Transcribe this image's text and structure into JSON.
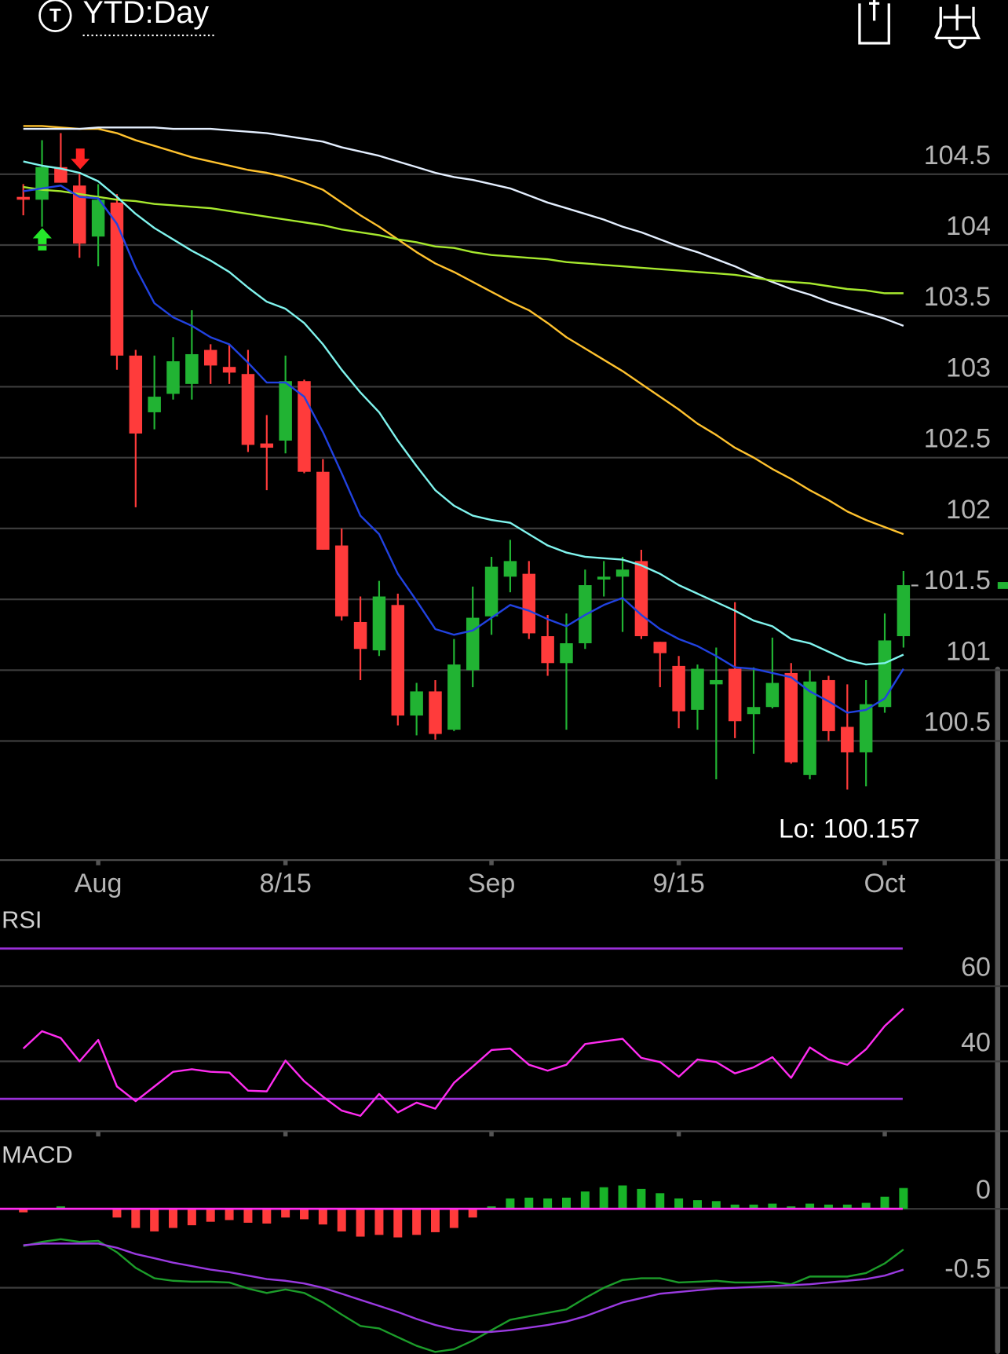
{
  "header": {
    "icon": "T",
    "title": "YTD:Day"
  },
  "chart_data": [
    {
      "type": "candlestick",
      "categories": [
        null,
        null,
        null,
        null,
        "Aug",
        null,
        null,
        null,
        null,
        null,
        null,
        null,
        null,
        null,
        "8/15",
        null,
        null,
        null,
        null,
        null,
        null,
        null,
        null,
        null,
        null,
        "Sep",
        null,
        null,
        null,
        null,
        null,
        null,
        null,
        null,
        null,
        "9/15",
        null,
        null,
        null,
        null,
        null,
        null,
        null,
        null,
        null,
        null,
        "Oct",
        null
      ],
      "open": [
        104.34,
        104.32,
        104.55,
        104.42,
        104.06,
        104.3,
        103.22,
        102.82,
        102.95,
        103.02,
        103.26,
        103.14,
        103.09,
        102.6,
        102.62,
        103.04,
        102.4,
        101.88,
        101.34,
        101.14,
        101.46,
        100.68,
        100.85,
        100.58,
        101.0,
        101.38,
        101.66,
        101.68,
        101.24,
        101.05,
        101.19,
        101.64,
        101.66,
        101.77,
        101.2,
        101.03,
        100.72,
        100.9,
        101.01,
        100.69,
        100.74,
        100.98,
        100.26,
        100.93,
        100.6,
        100.42,
        100.74,
        101.24
      ],
      "high": [
        104.43,
        104.74,
        104.79,
        104.51,
        104.43,
        104.36,
        103.26,
        103.22,
        103.35,
        103.54,
        103.3,
        103.3,
        103.26,
        102.8,
        103.22,
        103.05,
        102.49,
        102.0,
        101.52,
        101.63,
        101.54,
        100.91,
        100.93,
        101.22,
        101.59,
        101.8,
        101.92,
        101.77,
        101.39,
        101.4,
        101.71,
        101.77,
        101.8,
        101.85,
        101.2,
        101.1,
        101.04,
        101.16,
        101.48,
        101.02,
        101.23,
        101.05,
        101.0,
        100.96,
        100.9,
        100.93,
        101.4,
        101.7
      ],
      "low": [
        104.21,
        104.13,
        104.44,
        103.91,
        103.85,
        103.12,
        102.15,
        102.7,
        102.91,
        102.91,
        103.02,
        103.02,
        102.54,
        102.27,
        102.53,
        102.39,
        101.85,
        101.35,
        100.93,
        101.1,
        100.61,
        100.54,
        100.51,
        100.57,
        100.88,
        101.25,
        101.55,
        101.22,
        100.96,
        100.58,
        101.15,
        101.52,
        101.27,
        101.22,
        100.88,
        100.59,
        100.58,
        100.23,
        100.52,
        100.41,
        100.73,
        100.34,
        100.23,
        100.5,
        100.157,
        100.18,
        100.7,
        101.16
      ],
      "close": [
        104.32,
        104.55,
        104.44,
        104.01,
        104.32,
        103.22,
        102.67,
        102.93,
        103.18,
        103.23,
        103.15,
        103.1,
        102.59,
        102.57,
        103.04,
        102.4,
        101.85,
        101.38,
        101.15,
        101.52,
        100.68,
        100.85,
        100.55,
        101.04,
        101.37,
        101.73,
        101.77,
        101.26,
        101.05,
        101.19,
        101.6,
        101.66,
        101.71,
        101.24,
        101.12,
        100.71,
        101.01,
        100.93,
        100.64,
        100.74,
        100.91,
        100.35,
        100.92,
        100.57,
        100.42,
        100.76,
        101.21,
        101.6
      ],
      "up_color": "#21b333",
      "down_color": "#ff3b3b",
      "series": [
        {
          "color": "#ffc22e",
          "values": [
            104.84,
            104.84,
            104.83,
            104.82,
            104.82,
            104.79,
            104.74,
            104.7,
            104.66,
            104.62,
            104.59,
            104.56,
            104.53,
            104.51,
            104.48,
            104.44,
            104.39,
            104.3,
            104.21,
            104.13,
            104.04,
            103.95,
            103.87,
            103.81,
            103.74,
            103.67,
            103.6,
            103.54,
            103.45,
            103.35,
            103.27,
            103.19,
            103.11,
            103.02,
            102.93,
            102.84,
            102.74,
            102.66,
            102.57,
            102.5,
            102.42,
            102.35,
            102.27,
            102.2,
            102.12,
            102.06,
            102.01,
            101.96
          ]
        },
        {
          "color": "#e4efff",
          "values": [
            104.82,
            104.82,
            104.82,
            104.82,
            104.83,
            104.83,
            104.83,
            104.83,
            104.82,
            104.82,
            104.82,
            104.81,
            104.8,
            104.79,
            104.77,
            104.75,
            104.73,
            104.69,
            104.66,
            104.63,
            104.59,
            104.55,
            104.51,
            104.48,
            104.46,
            104.43,
            104.4,
            104.35,
            104.3,
            104.26,
            104.22,
            104.18,
            104.13,
            104.09,
            104.04,
            103.99,
            103.95,
            103.9,
            103.85,
            103.79,
            103.74,
            103.69,
            103.65,
            103.6,
            103.56,
            103.52,
            103.48,
            103.43
          ]
        },
        {
          "color": "#a6e82e",
          "values": [
            104.41,
            104.39,
            104.38,
            104.36,
            104.34,
            104.32,
            104.31,
            104.29,
            104.28,
            104.27,
            104.26,
            104.24,
            104.22,
            104.2,
            104.18,
            104.16,
            104.14,
            104.11,
            104.09,
            104.07,
            104.04,
            104.02,
            103.99,
            103.98,
            103.95,
            103.93,
            103.92,
            103.91,
            103.9,
            103.88,
            103.87,
            103.86,
            103.85,
            103.84,
            103.83,
            103.82,
            103.81,
            103.8,
            103.79,
            103.77,
            103.75,
            103.74,
            103.73,
            103.71,
            103.69,
            103.68,
            103.66,
            103.66
          ]
        },
        {
          "color": "#80f4ee",
          "values": [
            104.59,
            104.56,
            104.54,
            104.51,
            104.45,
            104.34,
            104.22,
            104.12,
            104.04,
            103.96,
            103.89,
            103.81,
            103.7,
            103.6,
            103.55,
            103.45,
            103.3,
            103.12,
            102.96,
            102.82,
            102.62,
            102.44,
            102.27,
            102.16,
            102.09,
            102.06,
            102.04,
            101.96,
            101.88,
            101.83,
            101.8,
            101.79,
            101.78,
            101.74,
            101.68,
            101.6,
            101.54,
            101.48,
            101.42,
            101.35,
            101.31,
            101.22,
            101.19,
            101.13,
            101.07,
            101.04,
            101.05,
            101.11
          ]
        },
        {
          "color": "#2142e0",
          "values": [
            104.38,
            104.4,
            104.42,
            104.34,
            104.33,
            104.15,
            103.84,
            103.59,
            103.49,
            103.43,
            103.35,
            103.3,
            103.17,
            103.03,
            103.03,
            102.93,
            102.68,
            102.39,
            102.09,
            101.96,
            101.68,
            101.49,
            101.29,
            101.25,
            101.28,
            101.37,
            101.46,
            101.42,
            101.36,
            101.31,
            101.39,
            101.46,
            101.51,
            101.39,
            101.29,
            101.22,
            101.17,
            101.1,
            101.02,
            101.01,
            100.98,
            100.95,
            100.85,
            100.78,
            100.7,
            100.72,
            100.8,
            101.01
          ]
        }
      ],
      "ylim": [
        99.66,
        105.12
      ],
      "yticks": [
        100.5,
        101,
        101.5,
        102,
        102.5,
        103,
        103.5,
        104,
        104.5
      ],
      "grid": true,
      "annotation": "Lo: 100.157"
    },
    {
      "type": "line",
      "title": "RSI",
      "series": [
        {
          "color": "#ff2cf0",
          "values": [
            43.4,
            48.0,
            46.2,
            40.0,
            45.7,
            33.3,
            29.4,
            33.3,
            37.2,
            37.9,
            37.2,
            37.0,
            32.2,
            32.0,
            40.2,
            34.7,
            30.6,
            26.9,
            25.5,
            31.3,
            26.4,
            29.0,
            27.4,
            34.3,
            38.6,
            43.0,
            43.4,
            39.1,
            37.5,
            39.1,
            44.6,
            45.3,
            46.0,
            40.9,
            39.8,
            35.9,
            40.5,
            39.8,
            36.8,
            38.4,
            41.1,
            35.6,
            43.7,
            40.5,
            39.1,
            43.2,
            49.4,
            54.0
          ]
        }
      ],
      "ylim": [
        21.4,
        80
      ],
      "yticks": [
        40,
        60
      ],
      "levels": [
        30,
        70
      ],
      "level_color": "#9b30d9",
      "grid": true
    },
    {
      "type": "macd",
      "title": "MACD",
      "values": [
        -0.022,
        0.005,
        0.016,
        0,
        0.005,
        -0.055,
        -0.121,
        -0.143,
        -0.121,
        -0.104,
        -0.082,
        -0.071,
        -0.088,
        -0.093,
        -0.055,
        -0.066,
        -0.099,
        -0.143,
        -0.176,
        -0.165,
        -0.181,
        -0.165,
        -0.148,
        -0.121,
        -0.055,
        0.016,
        0.066,
        0.071,
        0.066,
        0.071,
        0.11,
        0.137,
        0.148,
        0.126,
        0.099,
        0.066,
        0.055,
        0.049,
        0.027,
        0.027,
        0.033,
        0.016,
        0.033,
        0.027,
        0.027,
        0.038,
        0.077,
        0.132
      ],
      "up_color": "#18b428",
      "down_color": "#ff3b3b",
      "series": [
        {
          "color": "#1c9c2a",
          "values": [
            -0.236,
            -0.209,
            -0.192,
            -0.209,
            -0.203,
            -0.275,
            -0.374,
            -0.44,
            -0.456,
            -0.462,
            -0.462,
            -0.467,
            -0.505,
            -0.533,
            -0.511,
            -0.533,
            -0.593,
            -0.67,
            -0.742,
            -0.758,
            -0.813,
            -0.868,
            -0.907,
            -0.89,
            -0.835,
            -0.769,
            -0.703,
            -0.681,
            -0.659,
            -0.637,
            -0.566,
            -0.5,
            -0.451,
            -0.44,
            -0.44,
            -0.467,
            -0.462,
            -0.456,
            -0.467,
            -0.467,
            -0.462,
            -0.478,
            -0.429,
            -0.429,
            -0.429,
            -0.407,
            -0.346,
            -0.258
          ]
        },
        {
          "color": "#9a3ae0",
          "values": [
            -0.231,
            -0.22,
            -0.22,
            -0.22,
            -0.22,
            -0.247,
            -0.286,
            -0.313,
            -0.341,
            -0.363,
            -0.385,
            -0.401,
            -0.423,
            -0.445,
            -0.456,
            -0.473,
            -0.5,
            -0.538,
            -0.577,
            -0.615,
            -0.654,
            -0.698,
            -0.736,
            -0.764,
            -0.78,
            -0.78,
            -0.769,
            -0.753,
            -0.736,
            -0.714,
            -0.681,
            -0.637,
            -0.593,
            -0.566,
            -0.538,
            -0.527,
            -0.516,
            -0.505,
            -0.5,
            -0.495,
            -0.489,
            -0.484,
            -0.478,
            -0.467,
            -0.456,
            -0.445,
            -0.423,
            -0.385
          ]
        }
      ],
      "ylim": [
        -0.92,
        0.41
      ],
      "yticks": [
        -0.5,
        0
      ],
      "zero_color": "#ff2cf0",
      "grid": true
    }
  ]
}
